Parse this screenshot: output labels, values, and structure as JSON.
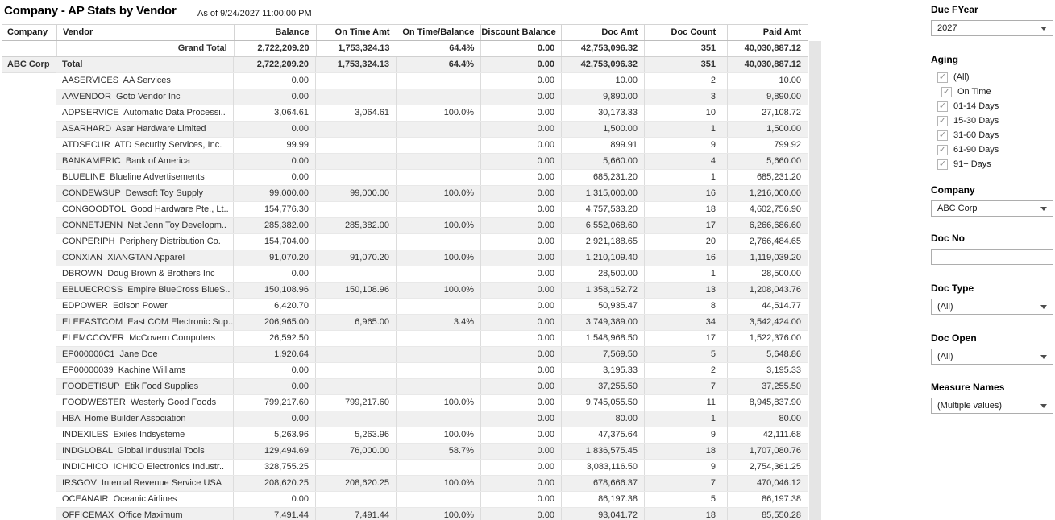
{
  "header": {
    "title": "Company - AP Stats by Vendor",
    "as_of": "As of 9/24/2027 11:00:00 PM"
  },
  "colors": {
    "row_stripe": "#f0f0f0",
    "grid_line": "#dcdcdc",
    "scrollbar_track": "#e5e5e5"
  },
  "table": {
    "columns": [
      "Company",
      "Vendor",
      "Balance",
      "On Time Amt",
      "On Time/Balance",
      "Discount Balance",
      "Doc Amt",
      "Doc Count",
      "Paid Amt"
    ],
    "grand_total": {
      "label": "Grand Total",
      "balance": "2,722,209.20",
      "on_time_amt": "1,753,324.13",
      "on_time_balance": "64.4%",
      "discount_balance": "0.00",
      "doc_amt": "42,753,096.32",
      "doc_count": "351",
      "paid_amt": "40,030,887.12"
    },
    "company_total": {
      "company": "ABC Corp",
      "label": "Total",
      "balance": "2,722,209.20",
      "on_time_amt": "1,753,324.13",
      "on_time_balance": "64.4%",
      "discount_balance": "0.00",
      "doc_amt": "42,753,096.32",
      "doc_count": "351",
      "paid_amt": "40,030,887.12"
    },
    "rows": [
      {
        "vendor": "AASERVICES  AA Services",
        "balance": "0.00",
        "on_time_amt": "",
        "on_time_balance": "",
        "discount_balance": "0.00",
        "doc_amt": "10.00",
        "doc_count": "2",
        "paid_amt": "10.00"
      },
      {
        "vendor": "AAVENDOR  Goto Vendor Inc",
        "balance": "0.00",
        "on_time_amt": "",
        "on_time_balance": "",
        "discount_balance": "0.00",
        "doc_amt": "9,890.00",
        "doc_count": "3",
        "paid_amt": "9,890.00"
      },
      {
        "vendor": "ADPSERVICE  Automatic Data Processi..",
        "balance": "3,064.61",
        "on_time_amt": "3,064.61",
        "on_time_balance": "100.0%",
        "discount_balance": "0.00",
        "doc_amt": "30,173.33",
        "doc_count": "10",
        "paid_amt": "27,108.72"
      },
      {
        "vendor": "ASARHARD  Asar Hardware Limited",
        "balance": "0.00",
        "on_time_amt": "",
        "on_time_balance": "",
        "discount_balance": "0.00",
        "doc_amt": "1,500.00",
        "doc_count": "1",
        "paid_amt": "1,500.00"
      },
      {
        "vendor": "ATDSECUR  ATD Security Services, Inc.",
        "balance": "99.99",
        "on_time_amt": "",
        "on_time_balance": "",
        "discount_balance": "0.00",
        "doc_amt": "899.91",
        "doc_count": "9",
        "paid_amt": "799.92"
      },
      {
        "vendor": "BANKAMERIC  Bank of America",
        "balance": "0.00",
        "on_time_amt": "",
        "on_time_balance": "",
        "discount_balance": "0.00",
        "doc_amt": "5,660.00",
        "doc_count": "4",
        "paid_amt": "5,660.00"
      },
      {
        "vendor": "BLUELINE  Blueline Advertisements",
        "balance": "0.00",
        "on_time_amt": "",
        "on_time_balance": "",
        "discount_balance": "0.00",
        "doc_amt": "685,231.20",
        "doc_count": "1",
        "paid_amt": "685,231.20"
      },
      {
        "vendor": "CONDEWSUP  Dewsoft Toy Supply",
        "balance": "99,000.00",
        "on_time_amt": "99,000.00",
        "on_time_balance": "100.0%",
        "discount_balance": "0.00",
        "doc_amt": "1,315,000.00",
        "doc_count": "16",
        "paid_amt": "1,216,000.00"
      },
      {
        "vendor": "CONGOODTOL  Good Hardware Pte., Lt..",
        "balance": "154,776.30",
        "on_time_amt": "",
        "on_time_balance": "",
        "discount_balance": "0.00",
        "doc_amt": "4,757,533.20",
        "doc_count": "18",
        "paid_amt": "4,602,756.90"
      },
      {
        "vendor": "CONNETJENN  Net Jenn Toy Developm..",
        "balance": "285,382.00",
        "on_time_amt": "285,382.00",
        "on_time_balance": "100.0%",
        "discount_balance": "0.00",
        "doc_amt": "6,552,068.60",
        "doc_count": "17",
        "paid_amt": "6,266,686.60"
      },
      {
        "vendor": "CONPERIPH  Periphery Distribution Co.",
        "balance": "154,704.00",
        "on_time_amt": "",
        "on_time_balance": "",
        "discount_balance": "0.00",
        "doc_amt": "2,921,188.65",
        "doc_count": "20",
        "paid_amt": "2,766,484.65"
      },
      {
        "vendor": "CONXIAN  XIANGTAN Apparel",
        "balance": "91,070.20",
        "on_time_amt": "91,070.20",
        "on_time_balance": "100.0%",
        "discount_balance": "0.00",
        "doc_amt": "1,210,109.40",
        "doc_count": "16",
        "paid_amt": "1,119,039.20"
      },
      {
        "vendor": "DBROWN  Doug Brown & Brothers Inc",
        "balance": "0.00",
        "on_time_amt": "",
        "on_time_balance": "",
        "discount_balance": "0.00",
        "doc_amt": "28,500.00",
        "doc_count": "1",
        "paid_amt": "28,500.00"
      },
      {
        "vendor": "EBLUECROSS  Empire BlueCross BlueS..",
        "balance": "150,108.96",
        "on_time_amt": "150,108.96",
        "on_time_balance": "100.0%",
        "discount_balance": "0.00",
        "doc_amt": "1,358,152.72",
        "doc_count": "13",
        "paid_amt": "1,208,043.76"
      },
      {
        "vendor": "EDPOWER  Edison Power",
        "balance": "6,420.70",
        "on_time_amt": "",
        "on_time_balance": "",
        "discount_balance": "0.00",
        "doc_amt": "50,935.47",
        "doc_count": "8",
        "paid_amt": "44,514.77"
      },
      {
        "vendor": "ELEEASTCOM  East COM Electronic Sup..",
        "balance": "206,965.00",
        "on_time_amt": "6,965.00",
        "on_time_balance": "3.4%",
        "discount_balance": "0.00",
        "doc_amt": "3,749,389.00",
        "doc_count": "34",
        "paid_amt": "3,542,424.00"
      },
      {
        "vendor": "ELEMCCOVER  McCovern Computers",
        "balance": "26,592.50",
        "on_time_amt": "",
        "on_time_balance": "",
        "discount_balance": "0.00",
        "doc_amt": "1,548,968.50",
        "doc_count": "17",
        "paid_amt": "1,522,376.00"
      },
      {
        "vendor": "EP000000C1  Jane Doe",
        "balance": "1,920.64",
        "on_time_amt": "",
        "on_time_balance": "",
        "discount_balance": "0.00",
        "doc_amt": "7,569.50",
        "doc_count": "5",
        "paid_amt": "5,648.86"
      },
      {
        "vendor": "EP00000039  Kachine Williams",
        "balance": "0.00",
        "on_time_amt": "",
        "on_time_balance": "",
        "discount_balance": "0.00",
        "doc_amt": "3,195.33",
        "doc_count": "2",
        "paid_amt": "3,195.33"
      },
      {
        "vendor": "FOODETISUP  Etik Food Supplies",
        "balance": "0.00",
        "on_time_amt": "",
        "on_time_balance": "",
        "discount_balance": "0.00",
        "doc_amt": "37,255.50",
        "doc_count": "7",
        "paid_amt": "37,255.50"
      },
      {
        "vendor": "FOODWESTER  Westerly Good Foods",
        "balance": "799,217.60",
        "on_time_amt": "799,217.60",
        "on_time_balance": "100.0%",
        "discount_balance": "0.00",
        "doc_amt": "9,745,055.50",
        "doc_count": "11",
        "paid_amt": "8,945,837.90"
      },
      {
        "vendor": "HBA  Home Builder Association",
        "balance": "0.00",
        "on_time_amt": "",
        "on_time_balance": "",
        "discount_balance": "0.00",
        "doc_amt": "80.00",
        "doc_count": "1",
        "paid_amt": "80.00"
      },
      {
        "vendor": "INDEXILES  Exiles Indsysteme",
        "balance": "5,263.96",
        "on_time_amt": "5,263.96",
        "on_time_balance": "100.0%",
        "discount_balance": "0.00",
        "doc_amt": "47,375.64",
        "doc_count": "9",
        "paid_amt": "42,111.68"
      },
      {
        "vendor": "INDGLOBAL  Global Industrial Tools",
        "balance": "129,494.69",
        "on_time_amt": "76,000.00",
        "on_time_balance": "58.7%",
        "discount_balance": "0.00",
        "doc_amt": "1,836,575.45",
        "doc_count": "18",
        "paid_amt": "1,707,080.76"
      },
      {
        "vendor": "INDICHICO  ICHICO Electronics Industr..",
        "balance": "328,755.25",
        "on_time_amt": "",
        "on_time_balance": "",
        "discount_balance": "0.00",
        "doc_amt": "3,083,116.50",
        "doc_count": "9",
        "paid_amt": "2,754,361.25"
      },
      {
        "vendor": "IRSGOV  Internal Revenue Service USA",
        "balance": "208,620.25",
        "on_time_amt": "208,620.25",
        "on_time_balance": "100.0%",
        "discount_balance": "0.00",
        "doc_amt": "678,666.37",
        "doc_count": "7",
        "paid_amt": "470,046.12"
      },
      {
        "vendor": "OCEANAIR  Oceanic Airlines",
        "balance": "0.00",
        "on_time_amt": "",
        "on_time_balance": "",
        "discount_balance": "0.00",
        "doc_amt": "86,197.38",
        "doc_count": "5",
        "paid_amt": "86,197.38"
      },
      {
        "vendor": "OFFICEMAX  Office Maximum",
        "balance": "7,491.44",
        "on_time_amt": "7,491.44",
        "on_time_balance": "100.0%",
        "discount_balance": "0.00",
        "doc_amt": "93,041.72",
        "doc_count": "18",
        "paid_amt": "85,550.28"
      }
    ]
  },
  "filters": {
    "due_fyear": {
      "label": "Due FYear",
      "value": "2027"
    },
    "aging": {
      "label": "Aging",
      "options": [
        {
          "label": "(All)",
          "checked": true
        },
        {
          "label": "On Time",
          "checked": true,
          "indent": true
        },
        {
          "label": "01-14 Days",
          "checked": true
        },
        {
          "label": "15-30 Days",
          "checked": true
        },
        {
          "label": "31-60 Days",
          "checked": true
        },
        {
          "label": "61-90 Days",
          "checked": true
        },
        {
          "label": "91+ Days",
          "checked": true
        }
      ]
    },
    "company": {
      "label": "Company",
      "value": "ABC Corp"
    },
    "doc_no": {
      "label": "Doc No",
      "value": ""
    },
    "doc_type": {
      "label": "Doc Type",
      "value": "(All)"
    },
    "doc_open": {
      "label": "Doc Open",
      "value": "(All)"
    },
    "measure_names": {
      "label": "Measure Names",
      "value": "(Multiple values)"
    }
  }
}
